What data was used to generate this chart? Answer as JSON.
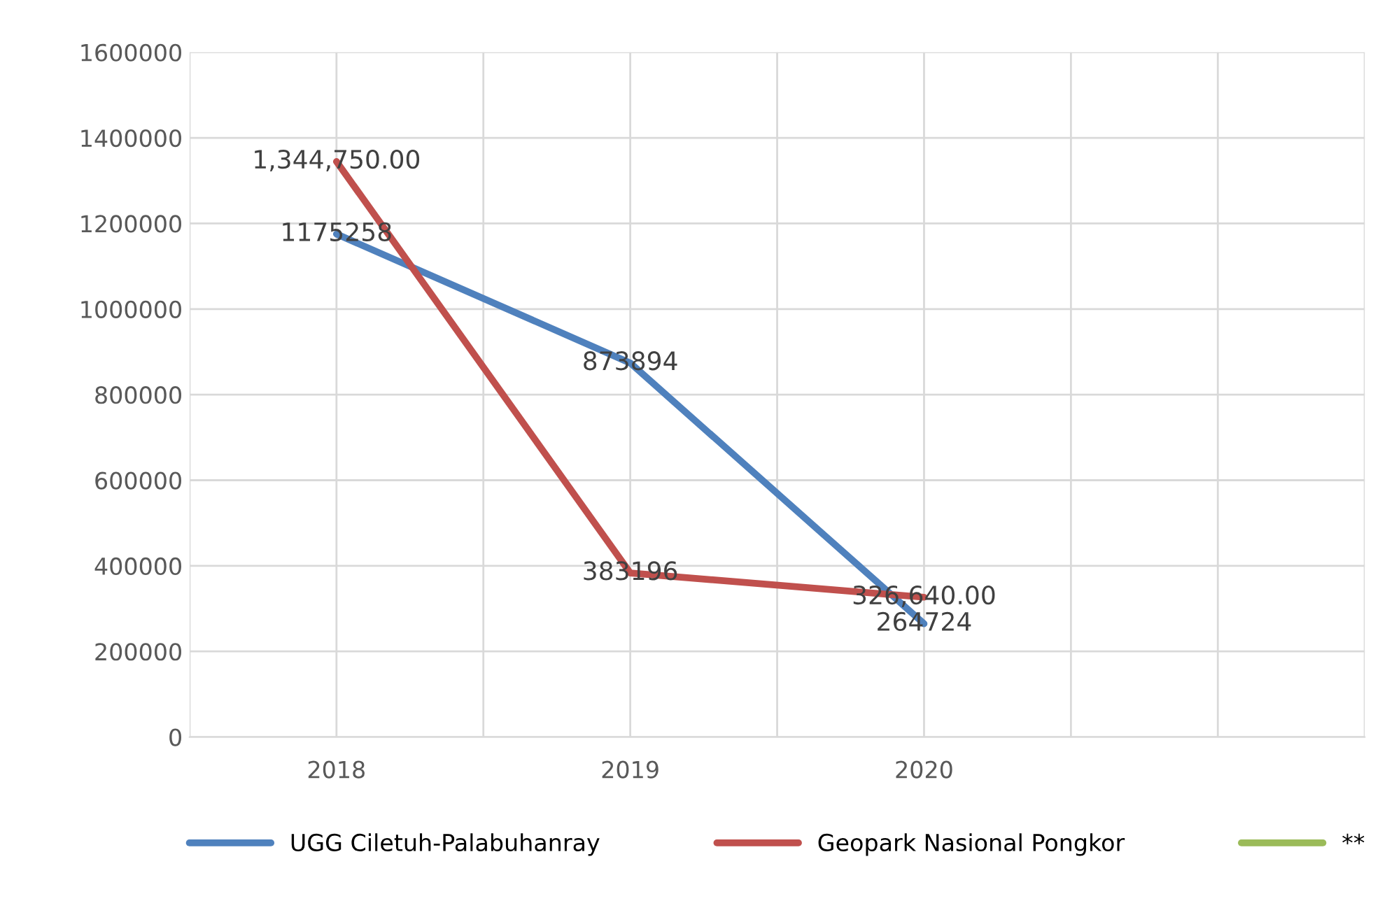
{
  "chart_data": {
    "type": "line",
    "categories": [
      "2018",
      "2019",
      "2020",
      null
    ],
    "series": [
      {
        "name": "UGG Ciletuh-Palabuhanray",
        "color": "#4f81bd",
        "values": [
          1175258,
          873894,
          264724,
          null
        ],
        "value_labels": [
          "1175258",
          "873894",
          "264724",
          null
        ]
      },
      {
        "name": "Geopark Nasional Pongkor",
        "color": "#c0504d",
        "values": [
          1344750,
          383196,
          326640,
          null
        ],
        "value_labels": [
          "1,344,750.00",
          "383196",
          "326,640.00",
          null
        ]
      },
      {
        "name": "**",
        "color": "#9bbb59",
        "values": [
          null,
          null,
          null,
          null
        ]
      }
    ],
    "ylim": [
      0,
      1600000
    ],
    "yticks": [
      0,
      200000,
      400000,
      600000,
      800000,
      1000000,
      1200000,
      1400000,
      1600000
    ],
    "grid": true,
    "legend": "bottom",
    "marker": "none",
    "line_style": "solid"
  }
}
